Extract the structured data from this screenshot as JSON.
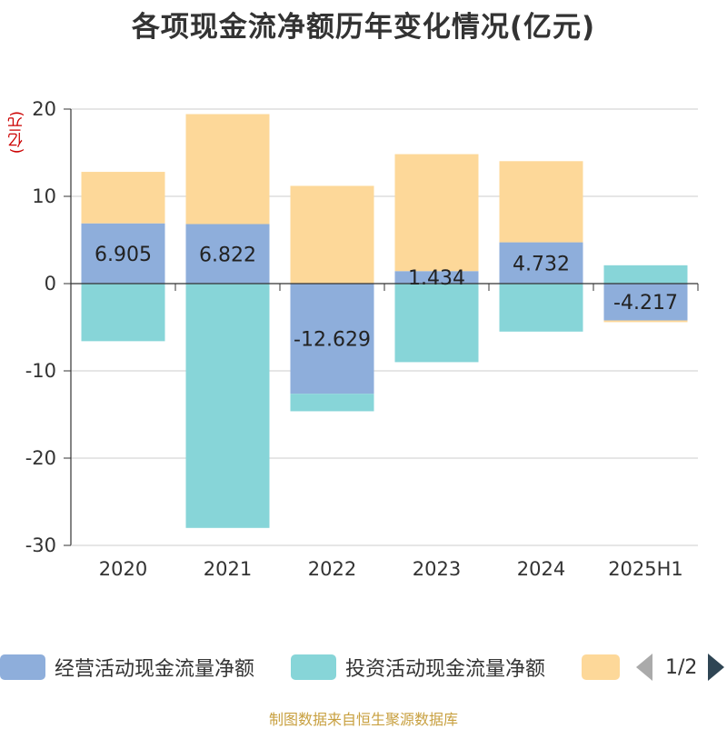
{
  "title": "各项现金流净额历年变化情况(亿元)",
  "unit_label": "(亿元)",
  "source": "制图数据来自恒生聚源数据库",
  "legend": {
    "items": [
      {
        "label": "经营活动现金流量净额",
        "color": "#8eaedb"
      },
      {
        "label": "投资活动现金流量净额",
        "color": "#87d5d8"
      },
      {
        "label": "",
        "color": "#fdd899"
      }
    ],
    "page": "1/2"
  },
  "chart_data": {
    "type": "bar",
    "stacked": true,
    "title": "各项现金流净额历年变化情况(亿元)",
    "ylabel": "(亿元)",
    "ylim": [
      -30,
      20
    ],
    "yticks": [
      20,
      10,
      0,
      -10,
      -20,
      -30
    ],
    "grid": true,
    "legend_position": "bottom",
    "categories": [
      "2020",
      "2021",
      "2022",
      "2023",
      "2024",
      "2025H1"
    ],
    "series": [
      {
        "name": "经营活动现金流量净额",
        "color": "#8eaedb",
        "values": [
          6.905,
          6.822,
          -12.629,
          1.434,
          4.732,
          -4.217
        ],
        "labels": [
          "6.905",
          "6.822",
          "-12.629",
          "1.434",
          "4.732",
          "-4.217"
        ]
      },
      {
        "name": "投资活动现金流量净额",
        "color": "#87d5d8",
        "values": [
          -6.6,
          -28.0,
          -2.0,
          -9.0,
          -5.5,
          2.1
        ]
      },
      {
        "color": "#fdd899",
        "values": [
          5.9,
          12.6,
          11.2,
          13.4,
          9.3,
          -0.2
        ]
      }
    ]
  }
}
